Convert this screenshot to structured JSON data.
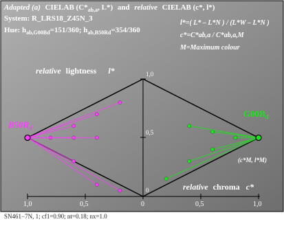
{
  "header": {
    "line1": {
      "prefix": "Adapted (a)",
      "space_left": "CIELAB (C*",
      "space_left_sub": "ab,a",
      "space_left_end": ", L*)",
      "and": "and",
      "relative": "relative",
      "space_right": "CIELAB (c*, l*)"
    },
    "line2": "System: R_LRS18_Z45N_3",
    "line3": {
      "hue": "Hue: h",
      "sub1": "ab,G00Bd",
      "val1": "=151/360; h",
      "sub2": "ab,B50Rd",
      "val2": "=354/360"
    }
  },
  "formulas": {
    "f1": "l*=( L* – L*N ) / (L*W – L*N )",
    "f2": "c*=C*ab,a / C*ab,a,M",
    "f3": "M=Maximum colour"
  },
  "labels": {
    "lightness_relative": "relative",
    "lightness": "lightness",
    "lightness_symbol": "l*",
    "chroma_relative": "relative",
    "chroma": "chroma",
    "chroma_symbol": "c*",
    "left_hue": "B50R",
    "left_hue_sub": "d",
    "right_hue": "G00B",
    "right_hue_sub": "d",
    "max_point": "(c*M, l*M)"
  },
  "axis": {
    "v_ticks": [
      "1,0",
      "0,5",
      "0"
    ],
    "h_ticks": [
      "1,0",
      "0,5",
      "0",
      "0,5",
      "1,0"
    ]
  },
  "footer": "SN461−7N, 1; cf1=0.90; nt=0.18; nx=1.0",
  "colors": {
    "background": "#8c8c8c",
    "left_hue": "#ff3cff",
    "right_hue": "#19e619",
    "chroma_label": "#ffffff"
  },
  "chart_data": {
    "type": "scatter",
    "title": "",
    "xlabel": "relative chroma c*",
    "ylabel": "relative lightness l*",
    "xlim": [
      -1,
      1
    ],
    "ylim": [
      0,
      1
    ],
    "series": [
      {
        "name": "B50Rd",
        "max": [
          -1.0,
          0.5
        ],
        "points": [
          [
            -0.8,
            0.5
          ],
          [
            -0.6,
            0.5
          ],
          [
            -0.4,
            0.5
          ],
          [
            -0.6,
            0.6
          ],
          [
            -0.4,
            0.7
          ],
          [
            -0.2,
            0.8
          ],
          [
            -0.6,
            0.3
          ],
          [
            -0.4,
            0.1
          ],
          [
            -0.2,
            0.05
          ]
        ]
      },
      {
        "name": "G00Bd",
        "max": [
          1.0,
          0.5
        ],
        "points": [
          [
            0.8,
            0.5
          ],
          [
            0.6,
            0.55
          ],
          [
            0.4,
            0.6
          ],
          [
            0.6,
            0.4
          ],
          [
            0.4,
            0.3
          ],
          [
            0.2,
            0.15
          ]
        ]
      }
    ]
  }
}
